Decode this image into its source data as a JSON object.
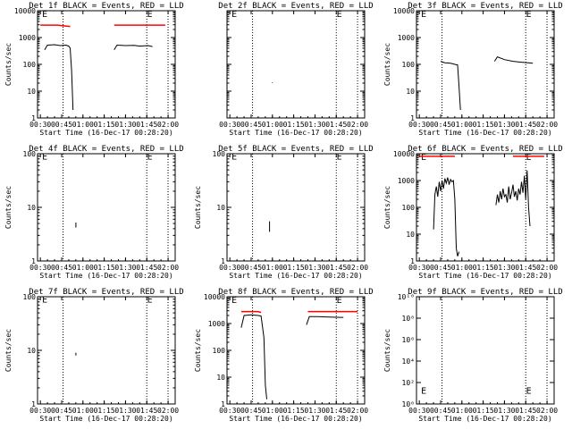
{
  "colors": {
    "events": "#000000",
    "lld": "#ff0000",
    "axes": "#000000",
    "background": "#ffffff"
  },
  "shared": {
    "ylabel": "Counts/sec",
    "xlabel": "Start Time (16-Dec-17 00:28:20)",
    "xticks": [
      "00:30",
      "00:45",
      "01:00",
      "01:15",
      "01:30",
      "01:45",
      "02:00"
    ],
    "vlines": [
      "00:46",
      "01:45",
      "02:00"
    ]
  },
  "chart_data": [
    {
      "type": "line",
      "title": "Det 1f BLACK = Events, RED = LLD",
      "xlabel": "Start Time (16-Dec-17 00:28:20)",
      "ylabel": "Counts/sec",
      "xlim": [
        "00:28",
        "02:05"
      ],
      "yscale": "log",
      "ylim": [
        1,
        10000
      ],
      "ytick_labels": [
        "1",
        "10",
        "100",
        "1000",
        "10000"
      ],
      "yticks": [
        1,
        10,
        100,
        1000,
        10000
      ],
      "marks": [
        {
          "x": "00:30",
          "y": 8000,
          "label": "E"
        },
        {
          "x": "01:44",
          "y": 8000,
          "label": "E"
        }
      ],
      "series": [
        {
          "color": "#ff0000",
          "segments": [
            [
              [
                "00:30",
                2900
              ],
              [
                "00:42",
                2900
              ],
              [
                "00:51",
                2600
              ]
            ],
            [
              [
                "01:22",
                2900
              ],
              [
                "01:58",
                2900
              ]
            ]
          ]
        },
        {
          "color": "#000000",
          "segments": [
            [
              [
                "00:33",
                350
              ],
              [
                "00:35",
                520
              ],
              [
                "00:40",
                540
              ],
              [
                "00:44",
                500
              ],
              [
                "00:48",
                520
              ],
              [
                "00:50",
                480
              ],
              [
                "00:51",
                400
              ],
              [
                "00:52",
                60
              ],
              [
                "00:53",
                2
              ]
            ],
            [
              [
                "01:22",
                350
              ],
              [
                "01:24",
                520
              ],
              [
                "01:30",
                500
              ],
              [
                "01:36",
                510
              ],
              [
                "01:40",
                480
              ],
              [
                "01:46",
                500
              ],
              [
                "01:49",
                460
              ]
            ]
          ]
        }
      ]
    },
    {
      "type": "line",
      "title": "Det 2f BLACK = Events, RED = LLD",
      "xlabel": "Start Time (16-Dec-17 00:28:20)",
      "ylabel": "",
      "xlim": [
        "00:28",
        "02:05"
      ],
      "yscale": "log",
      "ylim": [
        1,
        10000
      ],
      "ytick_labels": [],
      "yticks": [
        1,
        10,
        100,
        1000,
        10000
      ],
      "marks": [
        {
          "x": "00:30",
          "y": 8000,
          "label": "E"
        },
        {
          "x": "01:44",
          "y": 8000,
          "label": "E"
        }
      ],
      "series": [
        {
          "color": "#000000",
          "segments": [
            [
              [
                "01:00",
                20
              ],
              [
                "01:00",
                21
              ]
            ]
          ]
        }
      ]
    },
    {
      "type": "line",
      "title": "Det 3f BLACK = Events, RED = LLD",
      "xlabel": "Start Time (16-Dec-17 00:28:20)",
      "ylabel": "Counts/sec",
      "xlim": [
        "00:28",
        "02:05"
      ],
      "yscale": "log",
      "ylim": [
        1,
        10000
      ],
      "ytick_labels": [
        "1",
        "10",
        "100",
        "1000",
        "10000"
      ],
      "yticks": [
        1,
        10,
        100,
        1000,
        10000
      ],
      "marks": [
        {
          "x": "00:30",
          "y": 8000,
          "label": "E"
        },
        {
          "x": "01:44",
          "y": 8000,
          "label": "E"
        }
      ],
      "series": [
        {
          "color": "#000000",
          "segments": [
            [
              [
                "00:45",
                130
              ],
              [
                "00:48",
                115
              ],
              [
                "00:52",
                110
              ],
              [
                "00:55",
                100
              ],
              [
                "00:57",
                95
              ],
              [
                "00:58",
                15
              ],
              [
                "00:59",
                2
              ]
            ],
            [
              [
                "01:23",
                130
              ],
              [
                "01:25",
                190
              ],
              [
                "01:30",
                150
              ],
              [
                "01:36",
                130
              ],
              [
                "01:42",
                120
              ],
              [
                "01:50",
                110
              ]
            ]
          ]
        }
      ]
    },
    {
      "type": "line",
      "title": "Det 4f BLACK = Events, RED = LLD",
      "xlabel": "Start Time (16-Dec-17 00:28:20)",
      "ylabel": "Counts/sec",
      "xlim": [
        "00:28",
        "02:05"
      ],
      "yscale": "log",
      "ylim": [
        1,
        100
      ],
      "ytick_labels": [
        "1",
        "10",
        "100"
      ],
      "yticks": [
        1,
        10,
        100
      ],
      "marks": [
        {
          "x": "00:30",
          "y": 90,
          "label": "E"
        },
        {
          "x": "01:44",
          "y": 90,
          "label": "E"
        }
      ],
      "series": [
        {
          "color": "#000000",
          "segments": [
            [
              [
                "00:55",
                4.2
              ],
              [
                "00:55",
                5.2
              ]
            ]
          ]
        }
      ]
    },
    {
      "type": "line",
      "title": "Det 5f BLACK = Events, RED = LLD",
      "xlabel": "Start Time (16-Dec-17 00:28:20)",
      "ylabel": "Counts/sec",
      "xlim": [
        "00:28",
        "02:05"
      ],
      "yscale": "log",
      "ylim": [
        1,
        100
      ],
      "ytick_labels": [
        "1",
        "10",
        "100"
      ],
      "yticks": [
        1,
        10,
        100
      ],
      "marks": [
        {
          "x": "00:30",
          "y": 90,
          "label": "E"
        },
        {
          "x": "01:44",
          "y": 90,
          "label": "E"
        }
      ],
      "series": [
        {
          "color": "#000000",
          "segments": [
            [
              [
                "00:58",
                3.5
              ],
              [
                "00:58",
                5.5
              ]
            ]
          ]
        }
      ]
    },
    {
      "type": "line",
      "title": "Det 6f BLACK = Events, RED = LLD",
      "xlabel": "Start Time (16-Dec-17 00:28:20)",
      "ylabel": "Counts/sec",
      "xlim": [
        "00:28",
        "02:05"
      ],
      "yscale": "log",
      "ylim": [
        1,
        10000
      ],
      "ytick_labels": [
        "1",
        "10",
        "100",
        "1000",
        "10000"
      ],
      "yticks": [
        1,
        10,
        100,
        1000,
        10000
      ],
      "marks": [
        {
          "x": "00:30",
          "y": 8000,
          "label": "E"
        },
        {
          "x": "01:44",
          "y": 8000,
          "label": "E"
        }
      ],
      "series": [
        {
          "color": "#ff0000",
          "segments": [
            [
              [
                "00:30",
                8000
              ],
              [
                "00:55",
                8000
              ]
            ],
            [
              [
                "01:36",
                8000
              ],
              [
                "01:58",
                8000
              ]
            ]
          ]
        },
        {
          "color": "#000000",
          "segments": [
            [
              [
                "00:40",
                15
              ],
              [
                "00:41",
                300
              ],
              [
                "00:42",
                600
              ],
              [
                "00:43",
                250
              ],
              [
                "00:44",
                900
              ],
              [
                "00:45",
                400
              ],
              [
                "00:46",
                1000
              ],
              [
                "00:47",
                500
              ],
              [
                "00:48",
                1200
              ],
              [
                "00:49",
                800
              ],
              [
                "00:50",
                1300
              ],
              [
                "00:51",
                700
              ],
              [
                "00:52",
                1100
              ],
              [
                "00:53",
                900
              ],
              [
                "00:54",
                1000
              ],
              [
                "00:55",
                200
              ],
              [
                "00:56",
                3
              ],
              [
                "00:57",
                1.5
              ],
              [
                "00:58",
                2.2
              ]
            ],
            [
              [
                "01:24",
                120
              ],
              [
                "01:25",
                300
              ],
              [
                "01:26",
                150
              ],
              [
                "01:27",
                400
              ],
              [
                "01:28",
                200
              ],
              [
                "01:29",
                500
              ],
              [
                "01:30",
                250
              ],
              [
                "01:31",
                300
              ],
              [
                "01:32",
                150
              ],
              [
                "01:33",
                600
              ],
              [
                "01:34",
                200
              ],
              [
                "01:35",
                350
              ],
              [
                "01:36",
                700
              ],
              [
                "01:37",
                250
              ],
              [
                "01:38",
                400
              ],
              [
                "01:39",
                180
              ],
              [
                "01:40",
                500
              ],
              [
                "01:41",
                300
              ],
              [
                "01:42",
                900
              ],
              [
                "01:43",
                350
              ],
              [
                "01:44",
                1500
              ],
              [
                "01:45",
                200
              ],
              [
                "01:46",
                2400
              ],
              [
                "01:47",
                100
              ],
              [
                "01:48",
                20
              ]
            ]
          ]
        }
      ]
    },
    {
      "type": "line",
      "title": "Det 7f BLACK = Events, RED = LLD",
      "xlabel": "Start Time (16-Dec-17 00:28:20)",
      "ylabel": "Counts/sec",
      "xlim": [
        "00:28",
        "02:05"
      ],
      "yscale": "log",
      "ylim": [
        1,
        100
      ],
      "ytick_labels": [
        "1",
        "10",
        "100"
      ],
      "yticks": [
        1,
        10,
        100
      ],
      "marks": [
        {
          "x": "00:30",
          "y": 90,
          "label": "E"
        },
        {
          "x": "01:44",
          "y": 90,
          "label": "E"
        }
      ],
      "series": [
        {
          "color": "#000000",
          "segments": [
            [
              [
                "00:55",
                8
              ],
              [
                "00:55",
                9
              ]
            ]
          ]
        }
      ]
    },
    {
      "type": "line",
      "title": "Det 8f BLACK = Events, RED = LLD",
      "xlabel": "Start Time (16-Dec-17 00:28:20)",
      "ylabel": "Counts/sec",
      "xlim": [
        "00:28",
        "02:05"
      ],
      "yscale": "log",
      "ylim": [
        1,
        10000
      ],
      "ytick_labels": [
        "1",
        "10",
        "100",
        "1000",
        "10000"
      ],
      "yticks": [
        1,
        10,
        100,
        1000,
        10000
      ],
      "marks": [
        {
          "x": "00:30",
          "y": 8000,
          "label": "E"
        },
        {
          "x": "01:44",
          "y": 8000,
          "label": "E"
        }
      ],
      "series": [
        {
          "color": "#ff0000",
          "segments": [
            [
              [
                "00:38",
                2800
              ],
              [
                "00:50",
                2800
              ],
              [
                "00:52",
                2600
              ]
            ],
            [
              [
                "01:25",
                2800
              ],
              [
                "02:00",
                2800
              ]
            ]
          ]
        },
        {
          "color": "#000000",
          "segments": [
            [
              [
                "00:38",
                700
              ],
              [
                "00:40",
                2000
              ],
              [
                "00:45",
                2100
              ],
              [
                "00:50",
                2000
              ],
              [
                "00:52",
                1900
              ],
              [
                "00:54",
                300
              ],
              [
                "00:55",
                5
              ],
              [
                "00:56",
                1.5
              ]
            ],
            [
              [
                "01:24",
                900
              ],
              [
                "01:26",
                1800
              ],
              [
                "01:32",
                1800
              ],
              [
                "01:40",
                1750
              ],
              [
                "01:48",
                1700
              ],
              [
                "01:50",
                1700
              ]
            ]
          ]
        }
      ]
    },
    {
      "type": "line",
      "title": "Det 9f BLACK = Events, RED = LLD",
      "xlabel": "Start Time (16-Dec-17 00:28:20)",
      "ylabel": "Counts/sec",
      "xlim": [
        "00:28",
        "02:05"
      ],
      "yscale": "log",
      "ylim": [
        1,
        10000000000.0
      ],
      "ytick_labels": [
        "10⁰",
        "10²",
        "10⁴",
        "10⁶",
        "10⁸",
        "10¹⁰"
      ],
      "yticks": [
        1,
        100,
        10000,
        1000000,
        100000000,
        10000000000
      ],
      "marks": [
        {
          "x": "00:30",
          "y": 20,
          "label": "E"
        },
        {
          "x": "01:44",
          "y": 20,
          "label": "E"
        }
      ],
      "series": []
    }
  ]
}
